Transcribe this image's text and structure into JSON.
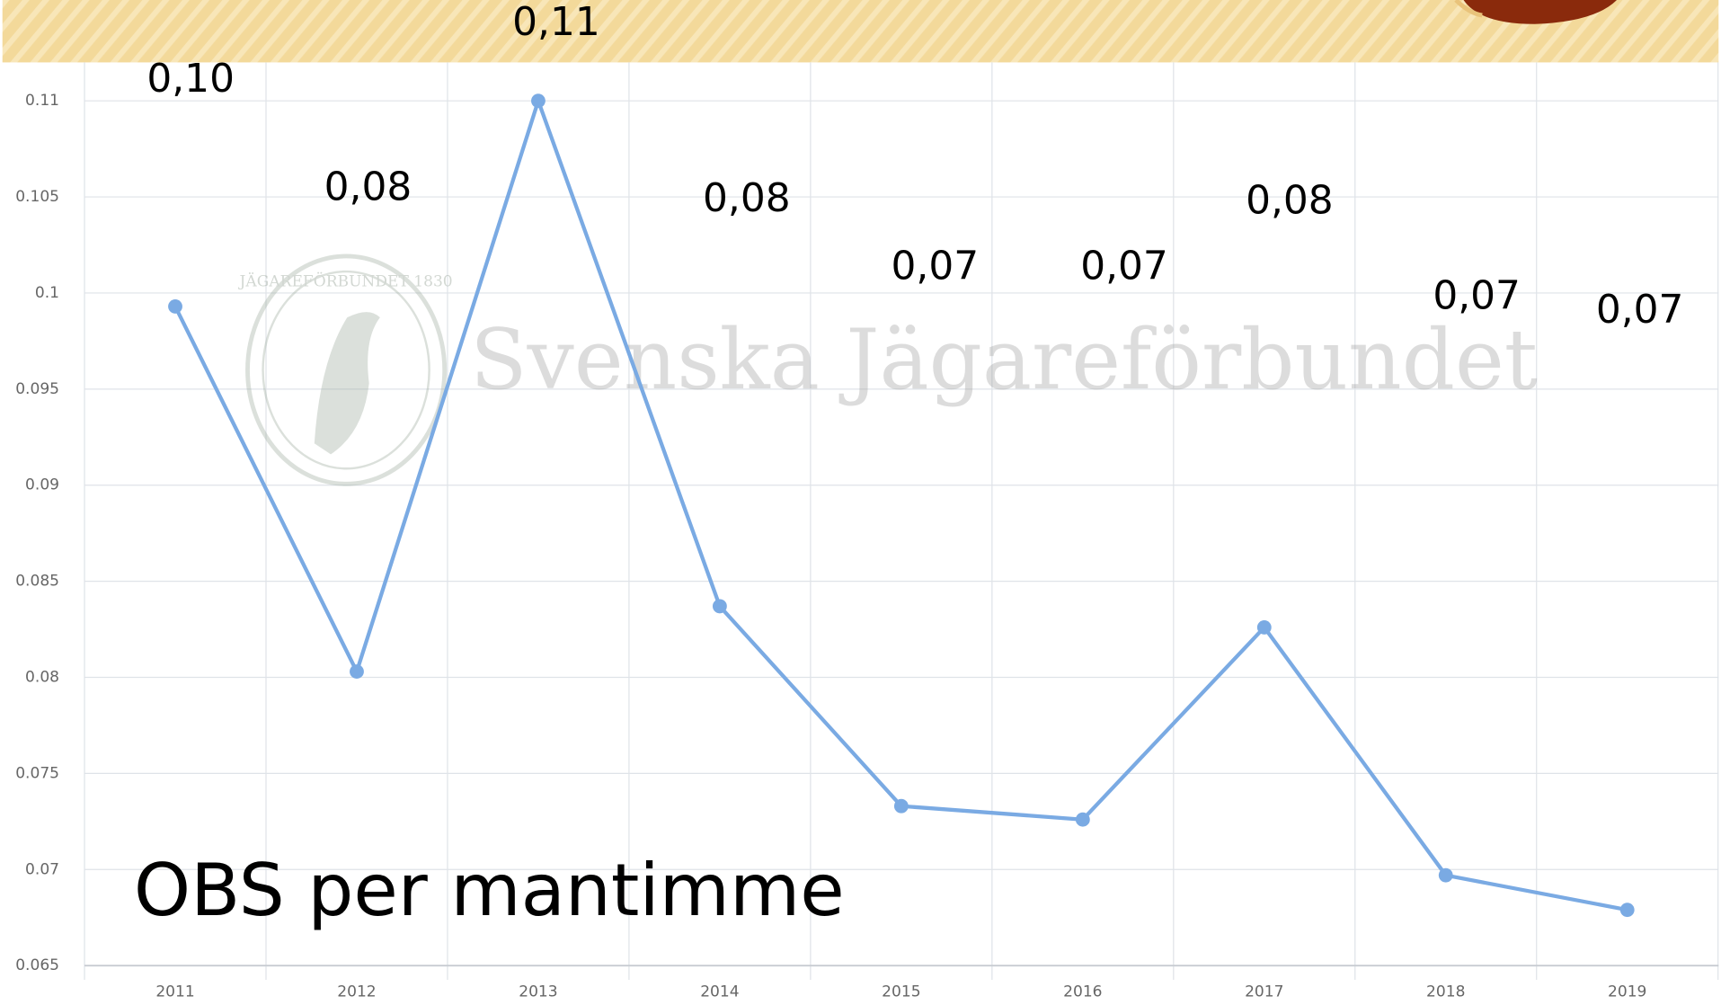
{
  "chart_data": {
    "type": "line",
    "annotation": "OBS per mantimme",
    "watermark": "Svenska Jägareförbundet",
    "logo_text": "JÄGAREFÖRBUNDET 1830",
    "categories": [
      "2011",
      "2012",
      "2013",
      "2014",
      "2015",
      "2016",
      "2017",
      "2018",
      "2019"
    ],
    "series": [
      {
        "color": "#7aaae3",
        "values": [
          0.0993,
          0.0803,
          0.11,
          0.0837,
          0.0733,
          0.0726,
          0.0826,
          0.0697,
          0.0679
        ],
        "value_labels": [
          "0,10",
          "0,08",
          "0,11",
          "0,08",
          "0,07",
          "0,07",
          "0,08",
          "0,07",
          "0,07"
        ]
      }
    ],
    "ylim": [
      0.065,
      0.112
    ],
    "yticks": [
      0.065,
      0.07,
      0.075,
      0.08,
      0.085,
      0.09,
      0.095,
      0.1,
      0.105,
      0.11
    ],
    "grid": true
  }
}
